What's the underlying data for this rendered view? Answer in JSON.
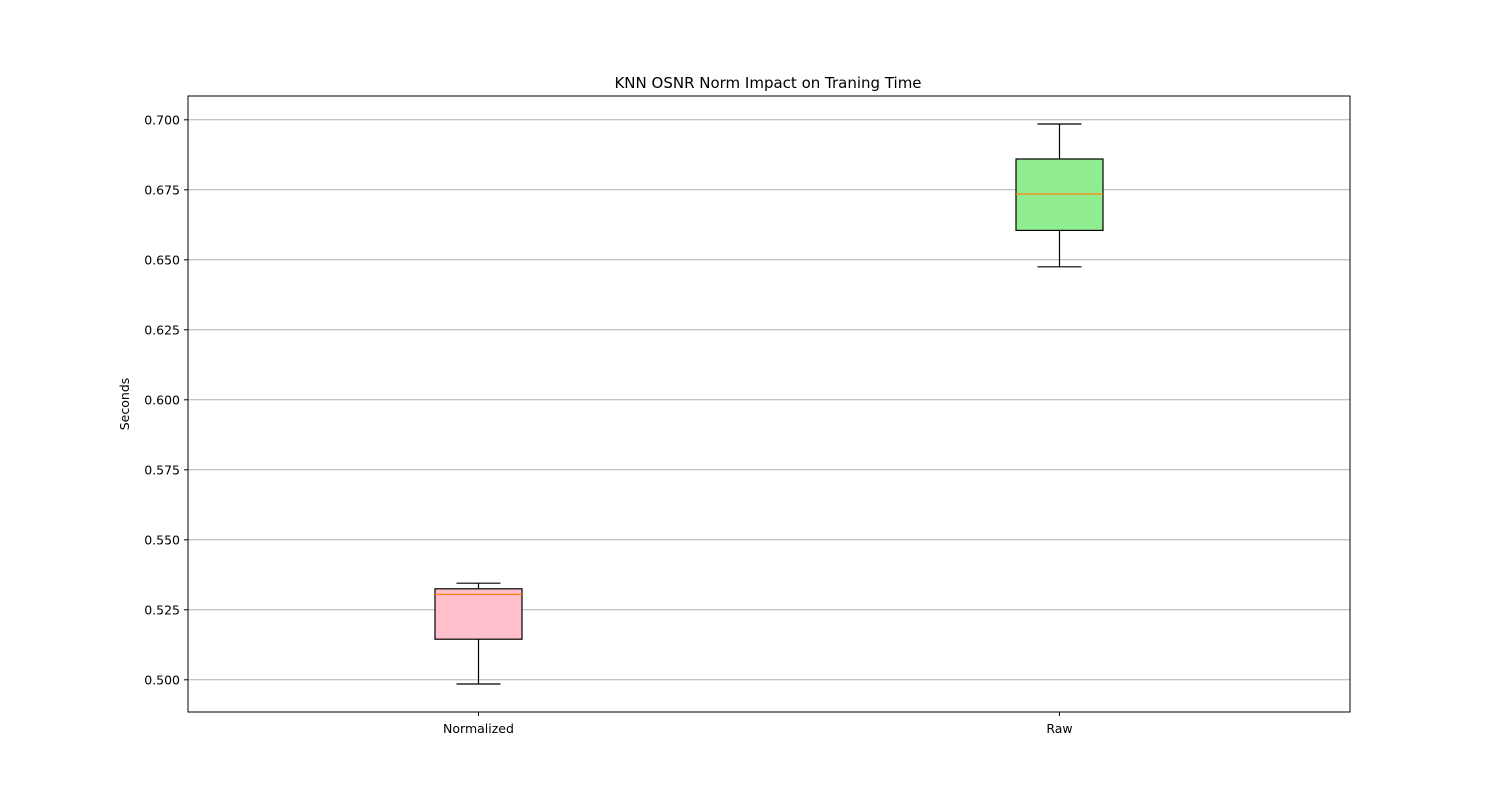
{
  "chart_data": {
    "type": "box",
    "title": "KNN OSNR Norm Impact on Traning Time",
    "xlabel": "",
    "ylabel": "Seconds",
    "ylim": [
      0.4885,
      0.7085
    ],
    "yticks": [
      0.5,
      0.525,
      0.55,
      0.575,
      0.6,
      0.625,
      0.65,
      0.675,
      0.7
    ],
    "ytick_labels": [
      "0.500",
      "0.525",
      "0.550",
      "0.575",
      "0.600",
      "0.625",
      "0.650",
      "0.675",
      "0.700"
    ],
    "grid": "y",
    "categories": [
      "Normalized",
      "Raw"
    ],
    "boxes": [
      {
        "label": "Normalized",
        "whislo": 0.4985,
        "q1": 0.5145,
        "med": 0.5305,
        "q3": 0.5325,
        "whishi": 0.5345,
        "color": "#ffc0cb"
      },
      {
        "label": "Raw",
        "whislo": 0.6475,
        "q1": 0.6605,
        "med": 0.6735,
        "q3": 0.686,
        "whishi": 0.6985,
        "color": "#90ee90"
      }
    ],
    "median_color": "#ff7f0e"
  }
}
